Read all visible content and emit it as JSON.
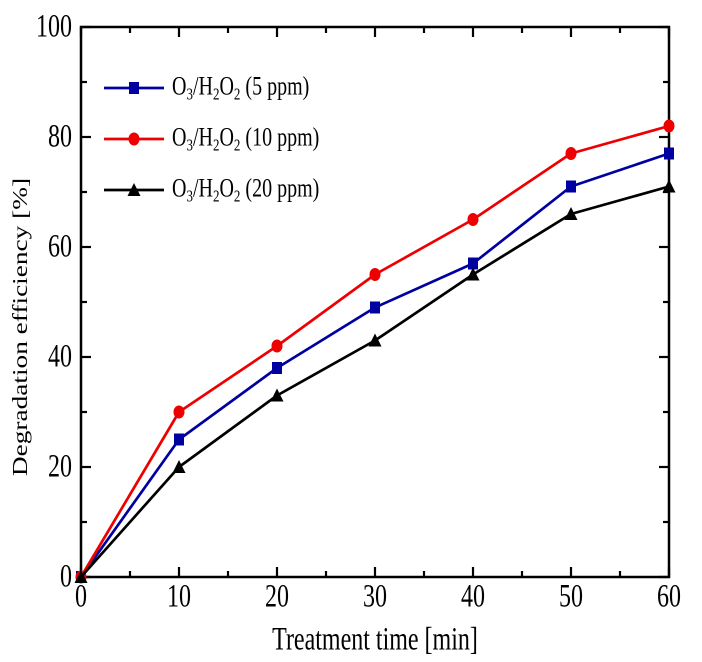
{
  "chart_data": {
    "type": "line",
    "title": "",
    "xlabel": "Treatment time [min]",
    "ylabel": "Degradation efficiency [%]",
    "xlim": [
      0,
      60
    ],
    "ylim": [
      0,
      100
    ],
    "x_major_ticks": [
      0,
      10,
      20,
      30,
      40,
      50,
      60
    ],
    "x_minor_ticks": [
      5,
      15,
      25,
      35,
      45,
      55
    ],
    "y_major_ticks": [
      0,
      20,
      40,
      60,
      80,
      100
    ],
    "y_minor_ticks": [
      10,
      30,
      50,
      70,
      90
    ],
    "grid": false,
    "frame": "box-with-inward-ticks",
    "legend_position": "top-left-inside",
    "axis_color": "#000000",
    "text_color": "#000000",
    "background_color": "#ffffff",
    "x": [
      0,
      10,
      20,
      30,
      40,
      50,
      60
    ],
    "series": [
      {
        "name": "O3/H2O2 (5 ppm)",
        "color": "#0000A0",
        "marker": "square",
        "values": [
          0,
          25,
          38,
          49,
          57,
          71,
          77
        ]
      },
      {
        "name": "O3/H2O2 (10 ppm)",
        "color": "#EE0000",
        "marker": "circle",
        "values": [
          0,
          30,
          42,
          55,
          65,
          77,
          82
        ]
      },
      {
        "name": "O3/H2O2 (20 ppm)",
        "color": "#000000",
        "marker": "triangle",
        "values": [
          0,
          20,
          33,
          43,
          55,
          66,
          71
        ]
      }
    ]
  }
}
